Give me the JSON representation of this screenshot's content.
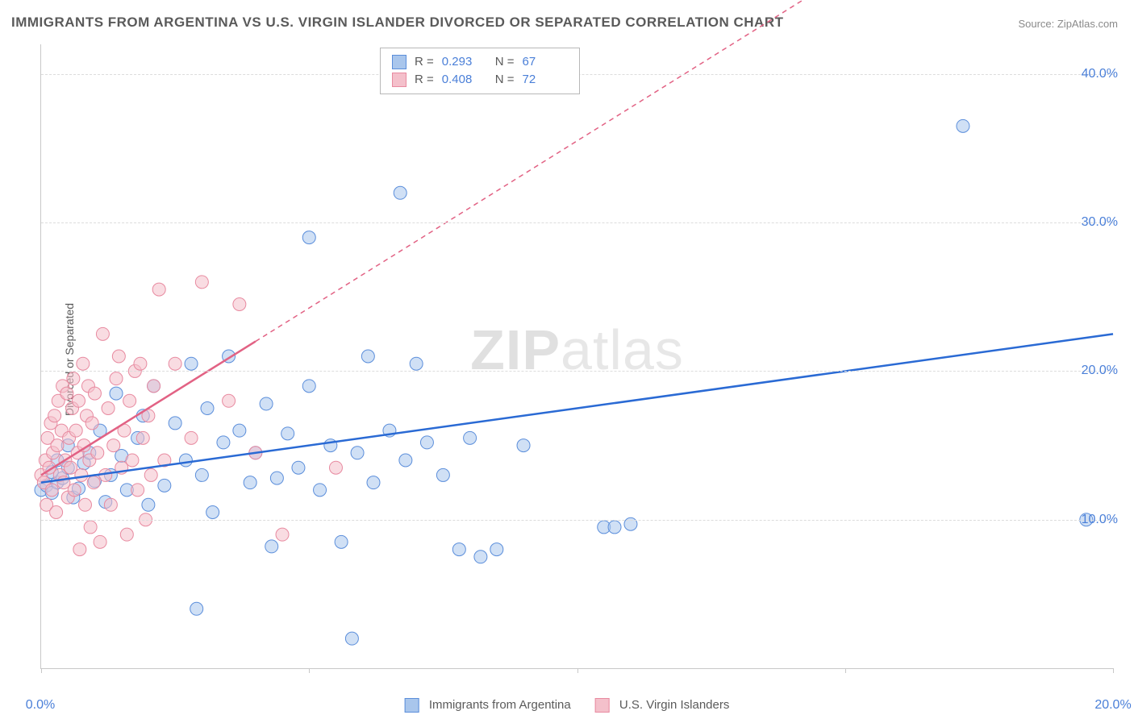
{
  "title": "IMMIGRANTS FROM ARGENTINA VS U.S. VIRGIN ISLANDER DIVORCED OR SEPARATED CORRELATION CHART",
  "source": "Source: ZipAtlas.com",
  "watermark_bold": "ZIP",
  "watermark_rest": "atlas",
  "chart": {
    "type": "scatter",
    "x_axis_label": "",
    "y_axis_label": "Divorced or Separated",
    "xlim": [
      0,
      20
    ],
    "ylim": [
      0,
      42
    ],
    "x_ticks": [
      0,
      5,
      10,
      15,
      20
    ],
    "x_tick_labels": [
      "0.0%",
      "",
      "",
      "",
      "20.0%"
    ],
    "y_ticks": [
      10,
      20,
      30,
      40
    ],
    "y_tick_labels": [
      "10.0%",
      "20.0%",
      "30.0%",
      "40.0%"
    ],
    "grid_color": "#dcdcdc",
    "border_color": "#c8c8c8",
    "background_color": "#ffffff",
    "marker_radius": 8,
    "marker_opacity": 0.55,
    "trend_line_width_solid": 2.5,
    "trend_line_width_dash": 1.5,
    "series": [
      {
        "name": "Immigrants from Argentina",
        "color_fill": "#a9c6ec",
        "color_stroke": "#5b8edb",
        "trend_color": "#2a6ad4",
        "trend_solid_from": [
          0,
          12.5
        ],
        "trend_solid_to": [
          20,
          22.5
        ],
        "points": [
          [
            0.0,
            12.0
          ],
          [
            0.1,
            12.3
          ],
          [
            0.2,
            11.8
          ],
          [
            0.3,
            12.5
          ],
          [
            0.2,
            13.2
          ],
          [
            0.4,
            12.8
          ],
          [
            0.5,
            13.5
          ],
          [
            0.3,
            14.0
          ],
          [
            0.6,
            11.5
          ],
          [
            0.7,
            12.1
          ],
          [
            0.8,
            13.8
          ],
          [
            0.9,
            14.5
          ],
          [
            1.0,
            12.6
          ],
          [
            0.5,
            15.0
          ],
          [
            1.2,
            11.2
          ],
          [
            1.1,
            16.0
          ],
          [
            1.3,
            13.0
          ],
          [
            1.5,
            14.3
          ],
          [
            1.4,
            18.5
          ],
          [
            1.6,
            12.0
          ],
          [
            1.8,
            15.5
          ],
          [
            1.9,
            17.0
          ],
          [
            2.0,
            11.0
          ],
          [
            2.1,
            19.0
          ],
          [
            2.3,
            12.3
          ],
          [
            2.5,
            16.5
          ],
          [
            2.7,
            14.0
          ],
          [
            2.8,
            20.5
          ],
          [
            3.0,
            13.0
          ],
          [
            3.1,
            17.5
          ],
          [
            3.2,
            10.5
          ],
          [
            3.4,
            15.2
          ],
          [
            3.5,
            21.0
          ],
          [
            2.9,
            4.0
          ],
          [
            3.7,
            16.0
          ],
          [
            3.9,
            12.5
          ],
          [
            4.0,
            14.5
          ],
          [
            4.2,
            17.8
          ],
          [
            4.4,
            12.8
          ],
          [
            4.3,
            8.2
          ],
          [
            4.6,
            15.8
          ],
          [
            4.8,
            13.5
          ],
          [
            5.0,
            29.0
          ],
          [
            5.0,
            19.0
          ],
          [
            5.2,
            12.0
          ],
          [
            5.4,
            15.0
          ],
          [
            5.6,
            8.5
          ],
          [
            5.8,
            2.0
          ],
          [
            5.9,
            14.5
          ],
          [
            6.1,
            21.0
          ],
          [
            6.2,
            12.5
          ],
          [
            6.5,
            16.0
          ],
          [
            6.7,
            32.0
          ],
          [
            6.8,
            14.0
          ],
          [
            7.0,
            20.5
          ],
          [
            7.2,
            15.2
          ],
          [
            7.5,
            13.0
          ],
          [
            7.8,
            8.0
          ],
          [
            8.0,
            15.5
          ],
          [
            8.2,
            7.5
          ],
          [
            8.5,
            8.0
          ],
          [
            9.0,
            15.0
          ],
          [
            10.5,
            9.5
          ],
          [
            10.7,
            9.5
          ],
          [
            11.0,
            9.7
          ],
          [
            17.2,
            36.5
          ],
          [
            19.5,
            10.0
          ]
        ]
      },
      {
        "name": "U.S. Virgin Islanders",
        "color_fill": "#f4c0cb",
        "color_stroke": "#e88aa0",
        "trend_color": "#e26284",
        "trend_solid_from": [
          0,
          13.0
        ],
        "trend_solid_to": [
          4,
          22.0
        ],
        "trend_dash_to": [
          20,
          58.0
        ],
        "points": [
          [
            0.0,
            13.0
          ],
          [
            0.05,
            12.5
          ],
          [
            0.08,
            14.0
          ],
          [
            0.1,
            11.0
          ],
          [
            0.12,
            15.5
          ],
          [
            0.15,
            13.5
          ],
          [
            0.18,
            16.5
          ],
          [
            0.2,
            12.0
          ],
          [
            0.22,
            14.5
          ],
          [
            0.25,
            17.0
          ],
          [
            0.28,
            10.5
          ],
          [
            0.3,
            15.0
          ],
          [
            0.32,
            18.0
          ],
          [
            0.35,
            13.0
          ],
          [
            0.38,
            16.0
          ],
          [
            0.4,
            19.0
          ],
          [
            0.42,
            12.5
          ],
          [
            0.45,
            14.0
          ],
          [
            0.48,
            18.5
          ],
          [
            0.5,
            11.5
          ],
          [
            0.52,
            15.5
          ],
          [
            0.55,
            13.5
          ],
          [
            0.58,
            17.5
          ],
          [
            0.6,
            19.5
          ],
          [
            0.62,
            12.0
          ],
          [
            0.65,
            16.0
          ],
          [
            0.68,
            14.5
          ],
          [
            0.7,
            18.0
          ],
          [
            0.72,
            8.0
          ],
          [
            0.75,
            13.0
          ],
          [
            0.78,
            20.5
          ],
          [
            0.8,
            15.0
          ],
          [
            0.82,
            11.0
          ],
          [
            0.85,
            17.0
          ],
          [
            0.88,
            19.0
          ],
          [
            0.9,
            14.0
          ],
          [
            0.92,
            9.5
          ],
          [
            0.95,
            16.5
          ],
          [
            0.98,
            12.5
          ],
          [
            1.0,
            18.5
          ],
          [
            1.05,
            14.5
          ],
          [
            1.1,
            8.5
          ],
          [
            1.15,
            22.5
          ],
          [
            1.2,
            13.0
          ],
          [
            1.25,
            17.5
          ],
          [
            1.3,
            11.0
          ],
          [
            1.35,
            15.0
          ],
          [
            1.4,
            19.5
          ],
          [
            1.45,
            21.0
          ],
          [
            1.5,
            13.5
          ],
          [
            1.55,
            16.0
          ],
          [
            1.6,
            9.0
          ],
          [
            1.65,
            18.0
          ],
          [
            1.7,
            14.0
          ],
          [
            1.75,
            20.0
          ],
          [
            1.8,
            12.0
          ],
          [
            1.85,
            20.5
          ],
          [
            1.9,
            15.5
          ],
          [
            1.95,
            10.0
          ],
          [
            2.0,
            17.0
          ],
          [
            2.05,
            13.0
          ],
          [
            2.1,
            19.0
          ],
          [
            2.2,
            25.5
          ],
          [
            2.3,
            14.0
          ],
          [
            2.5,
            20.5
          ],
          [
            2.8,
            15.5
          ],
          [
            3.0,
            26.0
          ],
          [
            3.5,
            18.0
          ],
          [
            3.7,
            24.5
          ],
          [
            4.0,
            14.5
          ],
          [
            4.5,
            9.0
          ],
          [
            5.5,
            13.5
          ]
        ]
      }
    ],
    "legend_top": {
      "rows": [
        {
          "r_label": "R  =",
          "r_value": "0.293",
          "n_label": "N  =",
          "n_value": "67"
        },
        {
          "r_label": "R  =",
          "r_value": "0.408",
          "n_label": "N  =",
          "n_value": "72"
        }
      ]
    }
  }
}
